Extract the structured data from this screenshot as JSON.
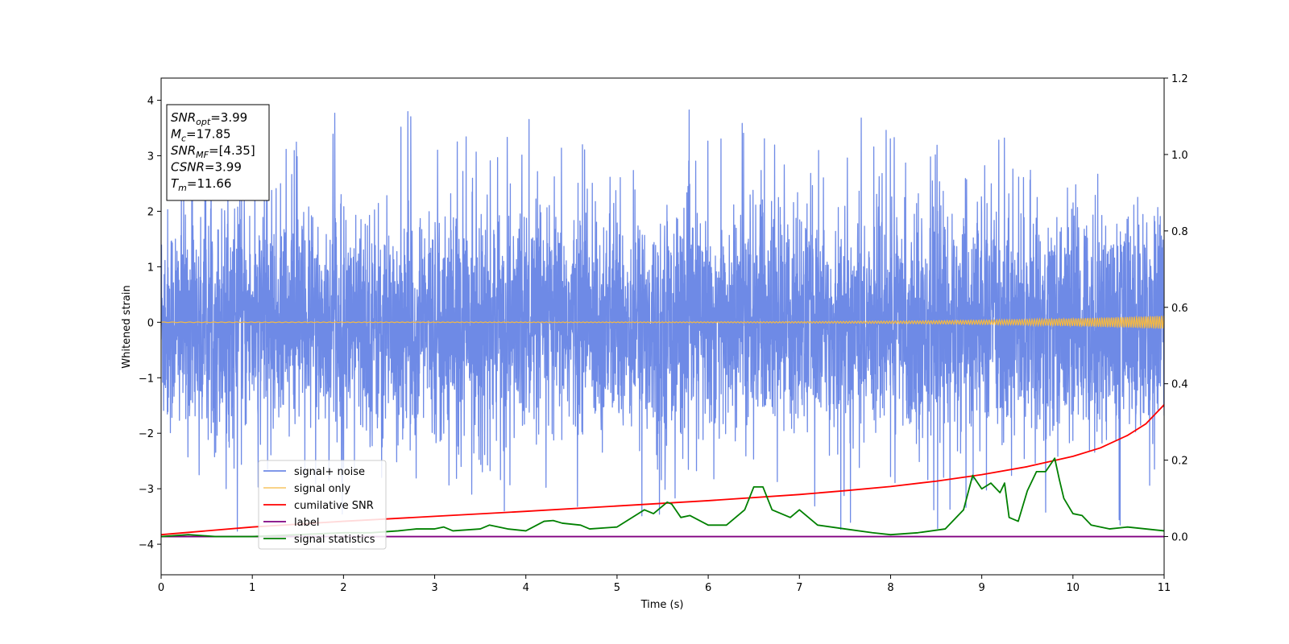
{
  "chart_data": {
    "type": "line",
    "title": "",
    "xlabel": "Time (s)",
    "ylabel": "Whitened strain",
    "y2label": "",
    "xlim": [
      0,
      11
    ],
    "ylim": [
      -4.55,
      4.4
    ],
    "y2lim": [
      -0.1,
      1.2
    ],
    "xticks": [
      "0",
      "1",
      "2",
      "3",
      "4",
      "5",
      "6",
      "7",
      "8",
      "9",
      "10",
      "11"
    ],
    "yticks": [
      "4",
      "3",
      "2",
      "1",
      "0",
      "−1",
      "−2",
      "−3",
      "−4"
    ],
    "y2ticks": [
      "1.2",
      "1.0",
      "0.8",
      "0.6",
      "0.4",
      "0.2",
      "0.0"
    ],
    "grid": false,
    "legend_position": "lower-left",
    "series": [
      {
        "name": "signal+ noise",
        "axis": "left",
        "color": "#6e8ae6",
        "kind": "noise",
        "typical_amplitude": 1.0,
        "peak_max": 4.0,
        "peak_min": -4.15
      },
      {
        "name": "signal only",
        "axis": "left",
        "color": "#f5b942",
        "kind": "chirp",
        "amplitude_start": 0.005,
        "amplitude_end": 0.12
      },
      {
        "name": "cumilative SNR",
        "axis": "right",
        "color": "#ff0000",
        "kind": "line",
        "x": [
          0,
          1,
          2,
          3,
          4,
          5,
          6,
          7,
          7.5,
          8,
          8.5,
          9,
          9.5,
          10,
          10.3,
          10.6,
          10.8,
          11
        ],
        "y": [
          0.005,
          0.025,
          0.04,
          0.053,
          0.066,
          0.08,
          0.094,
          0.11,
          0.12,
          0.131,
          0.145,
          0.162,
          0.183,
          0.21,
          0.232,
          0.265,
          0.295,
          0.345
        ]
      },
      {
        "name": "label",
        "axis": "right",
        "color": "#800080",
        "kind": "line",
        "x": [
          0,
          11
        ],
        "y": [
          0.0,
          0.0
        ]
      },
      {
        "name": "signal statistics",
        "axis": "right",
        "color": "#008000",
        "kind": "line",
        "x": [
          0,
          0.3,
          0.6,
          1,
          1.5,
          2,
          2.3,
          2.6,
          2.8,
          3,
          3.1,
          3.2,
          3.5,
          3.6,
          3.8,
          4,
          4.2,
          4.3,
          4.4,
          4.6,
          4.7,
          5,
          5.3,
          5.4,
          5.55,
          5.6,
          5.7,
          5.8,
          6,
          6.2,
          6.4,
          6.5,
          6.6,
          6.7,
          6.9,
          7,
          7.2,
          7.5,
          7.8,
          8,
          8.3,
          8.6,
          8.8,
          8.9,
          9.0,
          9.1,
          9.2,
          9.25,
          9.3,
          9.4,
          9.5,
          9.6,
          9.7,
          9.8,
          9.85,
          9.9,
          10,
          10.1,
          10.2,
          10.4,
          10.6,
          10.8,
          11
        ],
        "y": [
          0.0,
          0.005,
          0.0,
          0.0,
          0.005,
          0.01,
          0.01,
          0.015,
          0.02,
          0.02,
          0.025,
          0.015,
          0.02,
          0.03,
          0.02,
          0.015,
          0.04,
          0.042,
          0.035,
          0.03,
          0.02,
          0.025,
          0.07,
          0.06,
          0.09,
          0.085,
          0.05,
          0.055,
          0.03,
          0.03,
          0.07,
          0.13,
          0.13,
          0.07,
          0.05,
          0.07,
          0.03,
          0.02,
          0.01,
          0.005,
          0.01,
          0.02,
          0.07,
          0.16,
          0.125,
          0.14,
          0.115,
          0.14,
          0.05,
          0.04,
          0.12,
          0.17,
          0.17,
          0.205,
          0.15,
          0.1,
          0.06,
          0.055,
          0.03,
          0.02,
          0.025,
          0.02,
          0.015
        ]
      }
    ]
  },
  "annotation": {
    "lines": [
      {
        "base": "SNR",
        "sub": "opt",
        "value": "=3.99"
      },
      {
        "base": "M",
        "sub": "c",
        "value": "=17.85"
      },
      {
        "base": "SNR",
        "sub": "MF",
        "value": "=[4.35]"
      },
      {
        "base": "CSNR",
        "sub": "",
        "value": "=3.99"
      },
      {
        "base": "T",
        "sub": "m",
        "value": "=11.66"
      }
    ]
  }
}
